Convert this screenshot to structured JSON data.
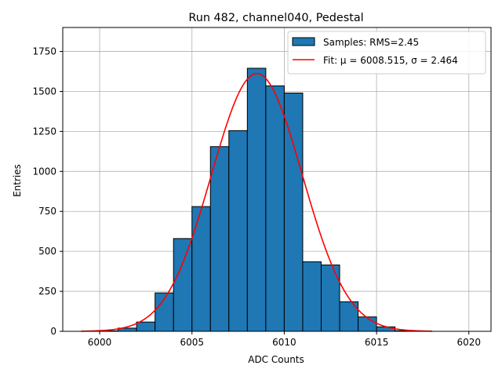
{
  "chart_data": {
    "type": "bar",
    "title": "Run 482, channel040, Pedestal",
    "xlabel": "ADC Counts",
    "ylabel": "Entries",
    "xlim": [
      5998.0,
      6021.2
    ],
    "ylim": [
      0,
      1900
    ],
    "grid": true,
    "legend_placement": "top-right",
    "x_ticks": [
      6000,
      6005,
      6010,
      6015,
      6020
    ],
    "x_tick_labels": [
      "6000",
      "6005",
      "6010",
      "6015",
      "6020"
    ],
    "y_ticks": [
      0,
      250,
      500,
      750,
      1000,
      1250,
      1500,
      1750
    ],
    "y_tick_labels": [
      "0",
      "250",
      "500",
      "750",
      "1000",
      "1250",
      "1500",
      "1750"
    ],
    "series": [
      {
        "name": "Samples: RMS=2.45",
        "kind": "histogram",
        "color": "#1f77b4",
        "edge_color": "#000000",
        "bin_edges": [
          5999,
          6000,
          6001,
          6002,
          6003,
          6004,
          6005,
          6006,
          6007,
          6008,
          6009,
          6010,
          6011,
          6012,
          6013,
          6014,
          6015,
          6016,
          6017,
          6018
        ],
        "values": [
          0,
          3,
          20,
          58,
          240,
          580,
          780,
          1155,
          1255,
          1645,
          1535,
          1490,
          435,
          415,
          185,
          90,
          28,
          4,
          1
        ]
      },
      {
        "name": "Fit: μ = 6008.515, σ = 2.464",
        "kind": "gaussian-fit",
        "color": "#ff0000",
        "mu": 6008.515,
        "sigma": 2.464,
        "amplitude": 1612,
        "x_range": [
          5999,
          6018
        ]
      }
    ]
  }
}
